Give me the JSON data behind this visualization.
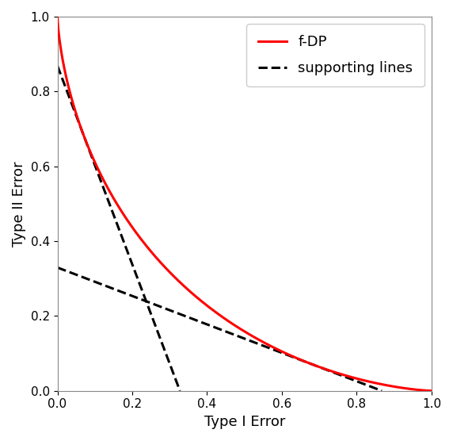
{
  "title": "",
  "xlabel": "Type I Error",
  "ylabel": "Type II Error",
  "xlim": [
    0,
    1
  ],
  "ylim": [
    0,
    1
  ],
  "curve_color": "#ff0000",
  "curve_label": "f-DP",
  "curve_linewidth": 2.2,
  "dashed_color": "#000000",
  "dashed_label": "supporting lines",
  "dashed_linewidth": 2.2,
  "mu": 1.0,
  "tangent_alpha1": 0.07,
  "tangent_alpha2": 0.68,
  "background_color": "#ffffff",
  "legend_fontsize": 13,
  "axis_fontsize": 13,
  "tick_fontsize": 11
}
